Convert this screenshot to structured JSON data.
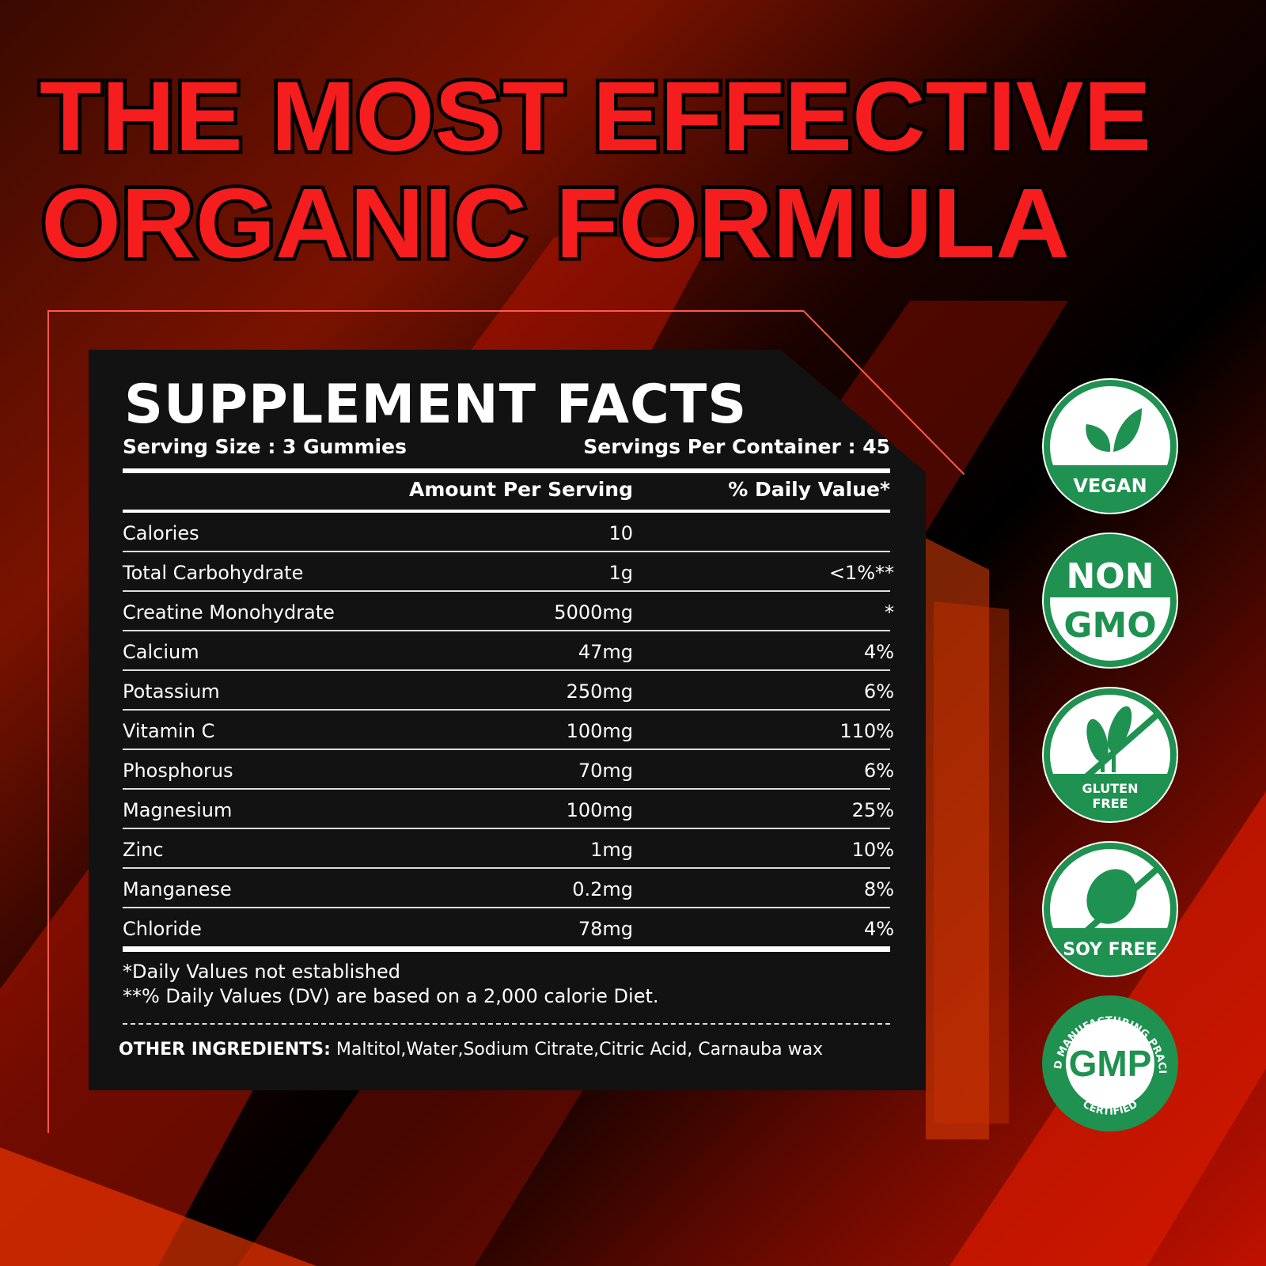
{
  "headline": {
    "line1": "THE MOST EFFECTIVE",
    "line2": "ORGANIC FORMULA"
  },
  "colors": {
    "headline_red": "#f51d1d",
    "badge_green": "#1f9150",
    "panel": "#121212",
    "frame": "#ff5a4a"
  },
  "facts": {
    "title": "SUPPLEMENT FACTS",
    "serving_size": "Serving Size : 3 Gummies",
    "servings_per_container": "Servings Per Container : 45",
    "col_amount": "Amount Per Serving",
    "col_dv": "% Daily Value*",
    "rows": [
      {
        "name": "Calories",
        "amount": "10",
        "dv": ""
      },
      {
        "name": "Total Carbohydrate",
        "amount": "1g",
        "dv": "<1%**"
      },
      {
        "name": "Creatine Monohydrate",
        "amount": "5000mg",
        "dv": "*"
      },
      {
        "name": "Calcium",
        "amount": "47mg",
        "dv": "4%"
      },
      {
        "name": "Potassium",
        "amount": "250mg",
        "dv": "6%"
      },
      {
        "name": "Vitamin C",
        "amount": "100mg",
        "dv": "110%"
      },
      {
        "name": "Phosphorus",
        "amount": "70mg",
        "dv": "6%"
      },
      {
        "name": "Magnesium",
        "amount": "100mg",
        "dv": "25%"
      },
      {
        "name": "Zinc",
        "amount": "1mg",
        "dv": "10%"
      },
      {
        "name": "Manganese",
        "amount": "0.2mg",
        "dv": "8%"
      },
      {
        "name": "Chloride",
        "amount": "78mg",
        "dv": "4%"
      }
    ],
    "footnote1": "*Daily Values not established",
    "footnote2": "**% Daily Values (DV) are based on a 2,000 calorie Diet.",
    "other_label": "OTHER INGREDIENTS:",
    "other_value": "Maltitol,Water,Sodium Citrate,Citric Acid, Carnauba wax"
  },
  "badges": {
    "vegan": "VEGAN",
    "non": "NON",
    "gmo": "GMO",
    "gluten1": "GLUTEN",
    "gluten2": "FREE",
    "soy": "SOY FREE",
    "gmp": "GMP",
    "gmp_ring": "GOOD MANUFACTURING PRACITCE",
    "gmp_bottom": "CERTIFIED"
  }
}
